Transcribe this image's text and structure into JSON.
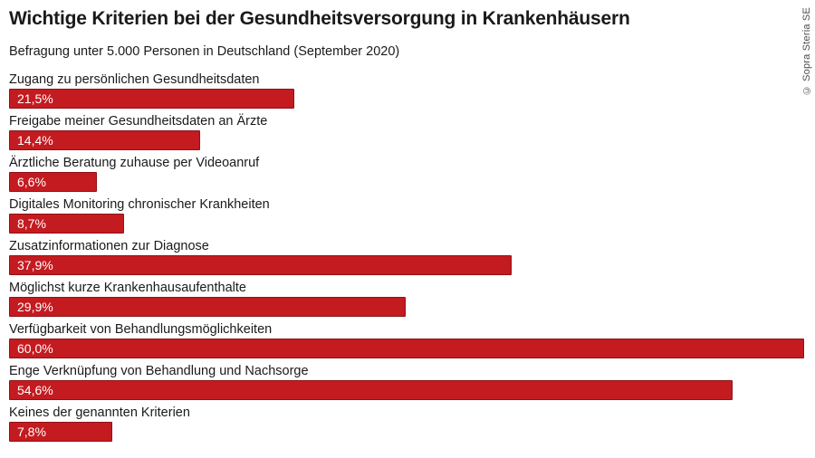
{
  "header": {
    "title": "Wichtige Kriterien bei der Gesundheitsversorgung in Krankenhäusern",
    "subtitle": "Befragung unter 5.000 Personen in Deutschland (September 2020)"
  },
  "credit": "© Sopra Steria SE",
  "colors": {
    "bar_fill": "#c41b20",
    "bar_border": "#8e1317",
    "text": "#1a1a1a",
    "value_text": "#ffffff",
    "credit_text": "#4d4d4d",
    "background": "#ffffff"
  },
  "chart_data": {
    "type": "bar",
    "orientation": "horizontal",
    "title": "Wichtige Kriterien bei der Gesundheitsversorgung in Krankenhäusern",
    "subtitle": "Befragung unter 5.000 Personen in Deutschland (September 2020)",
    "unit": "%",
    "xlim": [
      0,
      60
    ],
    "grid": false,
    "legend": false,
    "value_label_position": "inside-left",
    "categories": [
      "Zugang zu persönlichen Gesundheitsdaten",
      "Freigabe meiner Gesundheitsdaten an Ärzte",
      "Ärztliche Beratung zuhause per Videoanruf",
      "Digitales Monitoring chronischer Krankheiten",
      "Zusatzinformationen zur Diagnose",
      "Möglichst kurze Krankenhausaufenthalte",
      "Verfügbarkeit von Behandlungsmöglichkeiten",
      "Enge Verknüpfung von Behandlung und Nachsorge",
      "Keines der genannten Kriterien"
    ],
    "values": [
      21.5,
      14.4,
      6.6,
      8.7,
      37.9,
      29.9,
      60.0,
      54.6,
      7.8
    ],
    "value_labels": [
      "21,5%",
      "14,4%",
      "6,6%",
      "8,7%",
      "37,9%",
      "29,9%",
      "60,0%",
      "54,6%",
      "7,8%"
    ]
  }
}
